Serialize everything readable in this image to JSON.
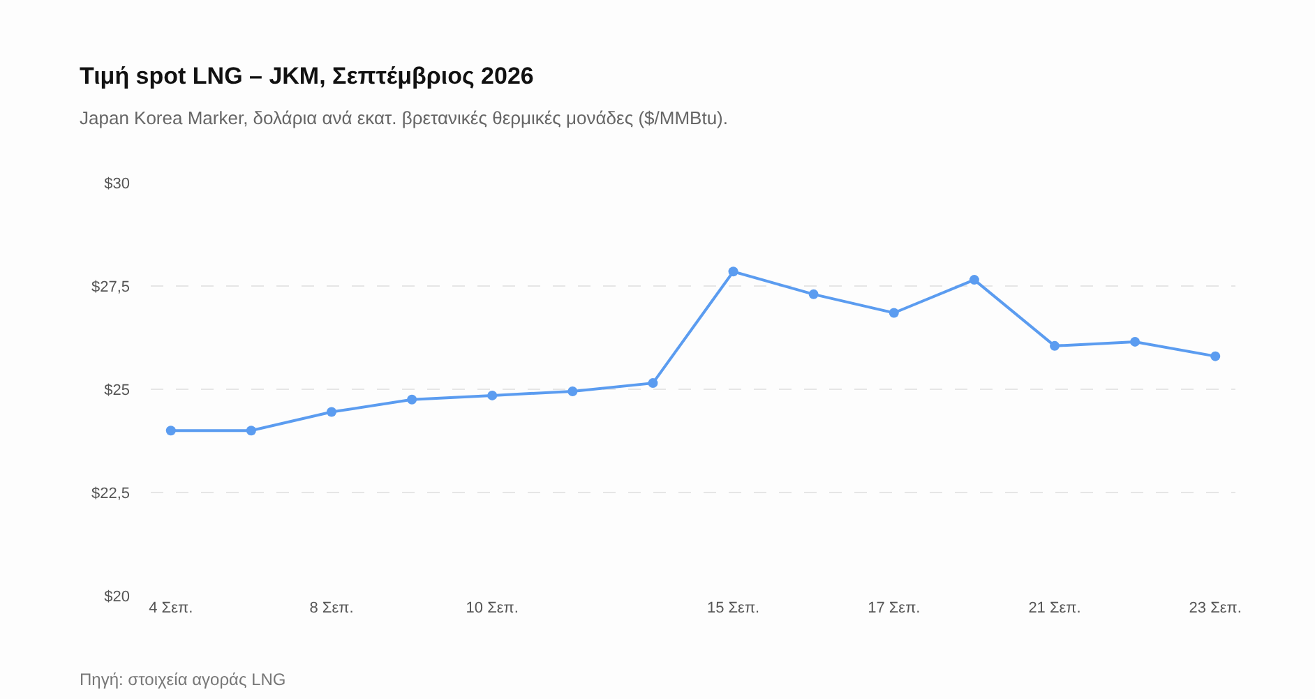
{
  "chart_data": {
    "type": "line",
    "title": "Τιμή spot LNG – JKM, Σεπτέμβριος 2026",
    "subtitle": "Japan Korea Marker, δολάρια ανά εκατ. βρετανικές θερμικές μονάδες ($/MMBtu).",
    "categories": [
      "4 Σεπ.",
      null,
      "8 Σεπ.",
      null,
      "10 Σεπ.",
      null,
      null,
      "15 Σεπ.",
      null,
      "17 Σεπ.",
      null,
      "21 Σεπ.",
      null,
      "23 Σεπ."
    ],
    "series": [
      {
        "color": "#5b9cf0",
        "values": [
          24.0,
          24.0,
          24.45,
          24.75,
          24.85,
          24.95,
          25.15,
          27.85,
          27.3,
          26.85,
          27.65,
          26.05,
          26.15,
          25.8
        ]
      }
    ],
    "ylim": [
      20,
      30
    ],
    "yticks": [
      {
        "value": 20,
        "label": "$20"
      },
      {
        "value": 22.5,
        "label": "$22,5"
      },
      {
        "value": 25,
        "label": "$25"
      },
      {
        "value": 27.5,
        "label": "$27,5"
      },
      {
        "value": 30,
        "label": "$30"
      }
    ],
    "grid": "y",
    "marker": "circle",
    "line_style": "solid",
    "legend": false,
    "annotations": [
      "Πηγή: στοιχεία αγοράς LNG"
    ]
  }
}
